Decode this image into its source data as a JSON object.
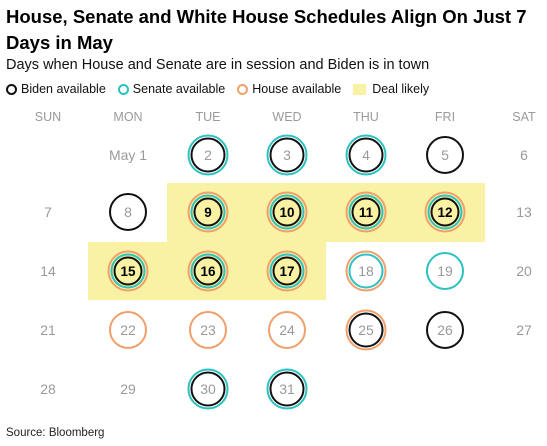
{
  "title": "House, Senate and White House Schedules Align On Just 7 Days in May",
  "subtitle": "Days when House and Senate are in session and Biden is in town",
  "source": "Source: Bloomberg",
  "colors": {
    "biden": "#111111",
    "senate": "#2bc2c0",
    "house": "#f0a06a",
    "deal": "#f9f2a4",
    "dayText": "#9a9a9a",
    "header": "#9a9a9a"
  },
  "legend": [
    {
      "key": "biden",
      "label": "Biden available",
      "kind": "ring"
    },
    {
      "key": "senate",
      "label": "Senate available",
      "kind": "ring"
    },
    {
      "key": "house",
      "label": "House available",
      "kind": "ring"
    },
    {
      "key": "deal",
      "label": "Deal likely",
      "kind": "square"
    }
  ],
  "chart_data": {
    "type": "table",
    "title": "House, Senate and White House Schedules Align On Just 7 Days in May",
    "weekdays": [
      "SUN",
      "MON",
      "TUE",
      "WED",
      "THU",
      "FRI",
      "SAT"
    ],
    "days": [
      {
        "label": "May 1",
        "day": 1,
        "biden": false,
        "senate": false,
        "house": false,
        "deal": false
      },
      {
        "label": "2",
        "day": 2,
        "biden": true,
        "senate": true,
        "house": false,
        "deal": false
      },
      {
        "label": "3",
        "day": 3,
        "biden": true,
        "senate": true,
        "house": false,
        "deal": false
      },
      {
        "label": "4",
        "day": 4,
        "biden": true,
        "senate": true,
        "house": false,
        "deal": false
      },
      {
        "label": "5",
        "day": 5,
        "biden": true,
        "senate": false,
        "house": false,
        "deal": false
      },
      {
        "label": "6",
        "day": 6,
        "biden": false,
        "senate": false,
        "house": false,
        "deal": false
      },
      {
        "label": "7",
        "day": 7,
        "biden": false,
        "senate": false,
        "house": false,
        "deal": false
      },
      {
        "label": "8",
        "day": 8,
        "biden": true,
        "senate": false,
        "house": false,
        "deal": false
      },
      {
        "label": "9",
        "day": 9,
        "biden": true,
        "senate": true,
        "house": true,
        "deal": true
      },
      {
        "label": "10",
        "day": 10,
        "biden": true,
        "senate": true,
        "house": true,
        "deal": true
      },
      {
        "label": "11",
        "day": 11,
        "biden": true,
        "senate": true,
        "house": true,
        "deal": true
      },
      {
        "label": "12",
        "day": 12,
        "biden": true,
        "senate": true,
        "house": true,
        "deal": true
      },
      {
        "label": "13",
        "day": 13,
        "biden": false,
        "senate": false,
        "house": false,
        "deal": false
      },
      {
        "label": "14",
        "day": 14,
        "biden": false,
        "senate": false,
        "house": false,
        "deal": false
      },
      {
        "label": "15",
        "day": 15,
        "biden": true,
        "senate": true,
        "house": true,
        "deal": true
      },
      {
        "label": "16",
        "day": 16,
        "biden": true,
        "senate": true,
        "house": true,
        "deal": true
      },
      {
        "label": "17",
        "day": 17,
        "biden": true,
        "senate": true,
        "house": true,
        "deal": true
      },
      {
        "label": "18",
        "day": 18,
        "biden": false,
        "senate": true,
        "house": true,
        "deal": false
      },
      {
        "label": "19",
        "day": 19,
        "biden": false,
        "senate": true,
        "house": false,
        "deal": false
      },
      {
        "label": "20",
        "day": 20,
        "biden": false,
        "senate": false,
        "house": false,
        "deal": false
      },
      {
        "label": "21",
        "day": 21,
        "biden": false,
        "senate": false,
        "house": false,
        "deal": false
      },
      {
        "label": "22",
        "day": 22,
        "biden": false,
        "senate": false,
        "house": true,
        "deal": false
      },
      {
        "label": "23",
        "day": 23,
        "biden": false,
        "senate": false,
        "house": true,
        "deal": false
      },
      {
        "label": "24",
        "day": 24,
        "biden": false,
        "senate": false,
        "house": true,
        "deal": false
      },
      {
        "label": "25",
        "day": 25,
        "biden": true,
        "senate": false,
        "house": true,
        "deal": false
      },
      {
        "label": "26",
        "day": 26,
        "biden": true,
        "senate": false,
        "house": false,
        "deal": false
      },
      {
        "label": "27",
        "day": 27,
        "biden": false,
        "senate": false,
        "house": false,
        "deal": false
      },
      {
        "label": "28",
        "day": 28,
        "biden": false,
        "senate": false,
        "house": false,
        "deal": false
      },
      {
        "label": "29",
        "day": 29,
        "biden": false,
        "senate": false,
        "house": false,
        "deal": false
      },
      {
        "label": "30",
        "day": 30,
        "biden": true,
        "senate": true,
        "house": false,
        "deal": false
      },
      {
        "label": "31",
        "day": 31,
        "biden": true,
        "senate": true,
        "house": false,
        "deal": false
      }
    ],
    "first_weekday_index": 1
  }
}
